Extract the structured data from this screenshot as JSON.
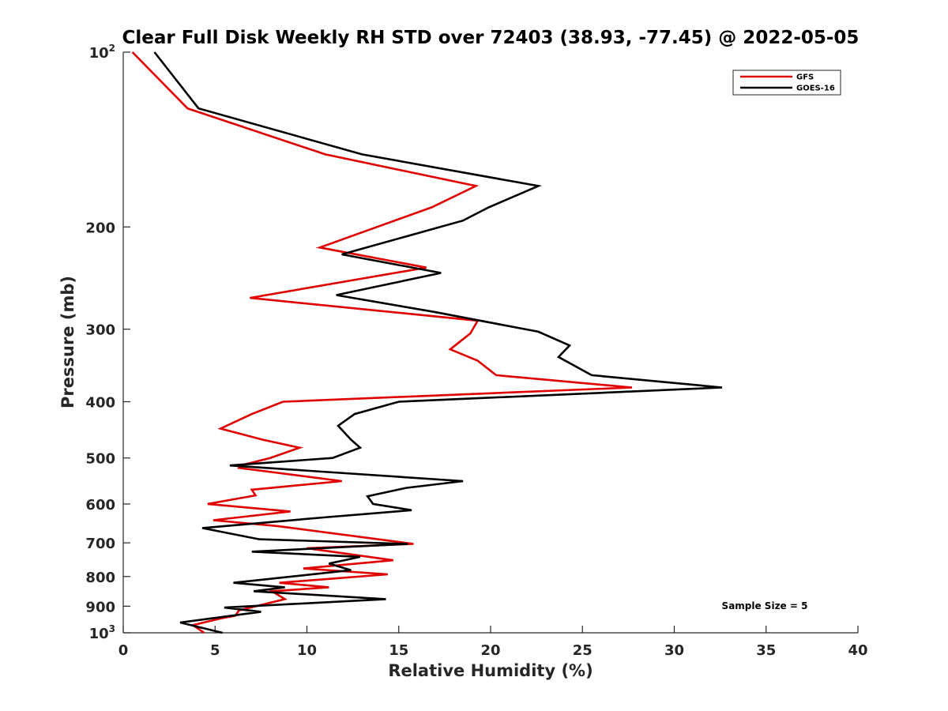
{
  "chart_data": {
    "type": "line",
    "title": "Clear Full Disk Weekly RH STD over 72403 (38.93, -77.45) @ 2022-05-05",
    "xlabel": "Relative Humidity (%)",
    "ylabel": "Pressure (mb)",
    "xlim": [
      0,
      40
    ],
    "ylim": [
      100,
      1000
    ],
    "y_scale": "log",
    "y_reversed": true,
    "x_ticks": [
      "0",
      "5",
      "10",
      "15",
      "20",
      "25",
      "30",
      "35",
      "40"
    ],
    "y_ticks": [
      {
        "value": 100,
        "label": "10",
        "sup": "2"
      },
      {
        "value": 200,
        "label": "200",
        "sup": ""
      },
      {
        "value": 300,
        "label": "300",
        "sup": ""
      },
      {
        "value": 400,
        "label": "400",
        "sup": ""
      },
      {
        "value": 500,
        "label": "500",
        "sup": ""
      },
      {
        "value": 600,
        "label": "600",
        "sup": ""
      },
      {
        "value": 700,
        "label": "700",
        "sup": ""
      },
      {
        "value": 800,
        "label": "800",
        "sup": ""
      },
      {
        "value": 900,
        "label": "900",
        "sup": ""
      },
      {
        "value": 1000,
        "label": "10",
        "sup": "3"
      }
    ],
    "grid": false,
    "legend_position": "top-right",
    "annotation": "Sample Size = 5",
    "series": [
      {
        "name": "GFS",
        "color": "#e00000",
        "points": [
          [
            0.5,
            100
          ],
          [
            3.5,
            125
          ],
          [
            11,
            150
          ],
          [
            19.2,
            170
          ],
          [
            16.8,
            185
          ],
          [
            10.7,
            217
          ],
          [
            16.5,
            235
          ],
          [
            6.9,
            265
          ],
          [
            19.3,
            290
          ],
          [
            18.9,
            305
          ],
          [
            17.8,
            325
          ],
          [
            19.3,
            340
          ],
          [
            20.3,
            360
          ],
          [
            27.7,
            378
          ],
          [
            8.7,
            400
          ],
          [
            7,
            420
          ],
          [
            5.3,
            445
          ],
          [
            7.6,
            465
          ],
          [
            9.6,
            480
          ],
          [
            8,
            500
          ],
          [
            6.4,
            515
          ],
          [
            6.3,
            520
          ],
          [
            11.9,
            548
          ],
          [
            7,
            567
          ],
          [
            7.2,
            580
          ],
          [
            4.6,
            600
          ],
          [
            9.1,
            618
          ],
          [
            4.9,
            640
          ],
          [
            8.4,
            655
          ],
          [
            15.8,
            703
          ],
          [
            10,
            715
          ],
          [
            14.7,
            750
          ],
          [
            9.8,
            775
          ],
          [
            14.4,
            793
          ],
          [
            8.5,
            820
          ],
          [
            11.2,
            835
          ],
          [
            8.1,
            848
          ],
          [
            8.8,
            875
          ],
          [
            6.3,
            915
          ],
          [
            6.1,
            935
          ],
          [
            5.3,
            945
          ],
          [
            3.8,
            970
          ],
          [
            4.4,
            1000
          ]
        ]
      },
      {
        "name": "GOES-16",
        "color": "#000000",
        "points": [
          [
            1.7,
            100
          ],
          [
            4.1,
            125
          ],
          [
            13,
            150
          ],
          [
            22.6,
            170
          ],
          [
            19.9,
            185
          ],
          [
            18.5,
            195
          ],
          [
            11.9,
            223
          ],
          [
            17.3,
            240
          ],
          [
            11.6,
            262
          ],
          [
            16.9,
            280
          ],
          [
            22.6,
            303
          ],
          [
            24.3,
            320
          ],
          [
            23.7,
            335
          ],
          [
            25.5,
            360
          ],
          [
            32.6,
            378
          ],
          [
            15,
            400
          ],
          [
            12.6,
            420
          ],
          [
            11.7,
            440
          ],
          [
            12.4,
            465
          ],
          [
            12.9,
            480
          ],
          [
            11.4,
            500
          ],
          [
            5.8,
            515
          ],
          [
            18.5,
            548
          ],
          [
            15.4,
            563
          ],
          [
            13.3,
            582
          ],
          [
            13.6,
            600
          ],
          [
            15.7,
            615
          ],
          [
            10.9,
            633
          ],
          [
            4.3,
            660
          ],
          [
            7.4,
            690
          ],
          [
            15.5,
            703
          ],
          [
            7,
            725
          ],
          [
            12.9,
            740
          ],
          [
            11.2,
            760
          ],
          [
            12.4,
            780
          ],
          [
            6,
            820
          ],
          [
            8.8,
            835
          ],
          [
            7.1,
            848
          ],
          [
            14.3,
            875
          ],
          [
            5.5,
            905
          ],
          [
            7.5,
            920
          ],
          [
            3.1,
            960
          ],
          [
            5.4,
            1000
          ]
        ]
      }
    ]
  }
}
